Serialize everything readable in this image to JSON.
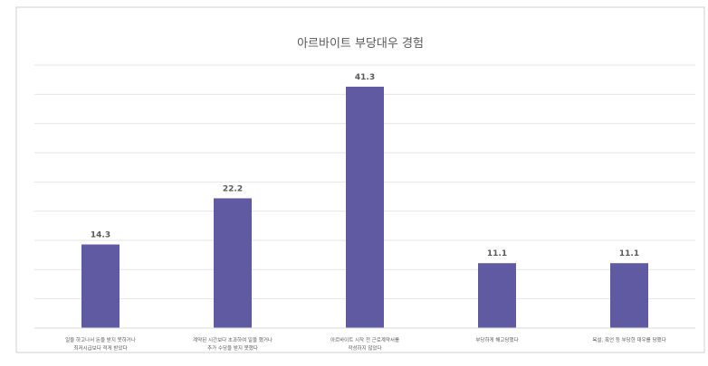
{
  "chart_data": {
    "type": "bar",
    "title": "아르바이트 부당대우 경험",
    "xlabel": "",
    "ylabel": "",
    "ylim": [
      0,
      45
    ],
    "grid": true,
    "legend": "none",
    "colors": {
      "bar": "#5f5aa2",
      "grid": "#e6e6e6",
      "axis": "#d9d9d9",
      "frame": "#d0d0d0",
      "text": "#595959"
    },
    "categories": [
      [
        "일을 하고나서 돈을 받지 못하거나",
        "최저시급보다 적게 받았다"
      ],
      [
        "계약된 시간보다 초과하여 일을 했거나",
        "추가 수당을 받지 못했다"
      ],
      [
        "아르바이트 시작 전 근로계약서를",
        "작성하지 않았다"
      ],
      [
        "부당하게 해고당했다"
      ],
      [
        "욕설, 폭언 등 부당한 대우를 당했다"
      ]
    ],
    "values": [
      14.3,
      22.2,
      41.3,
      11.1,
      11.1
    ],
    "value_labels": [
      "14.3",
      "22.2",
      "41.3",
      "11.1",
      "11.1"
    ]
  }
}
